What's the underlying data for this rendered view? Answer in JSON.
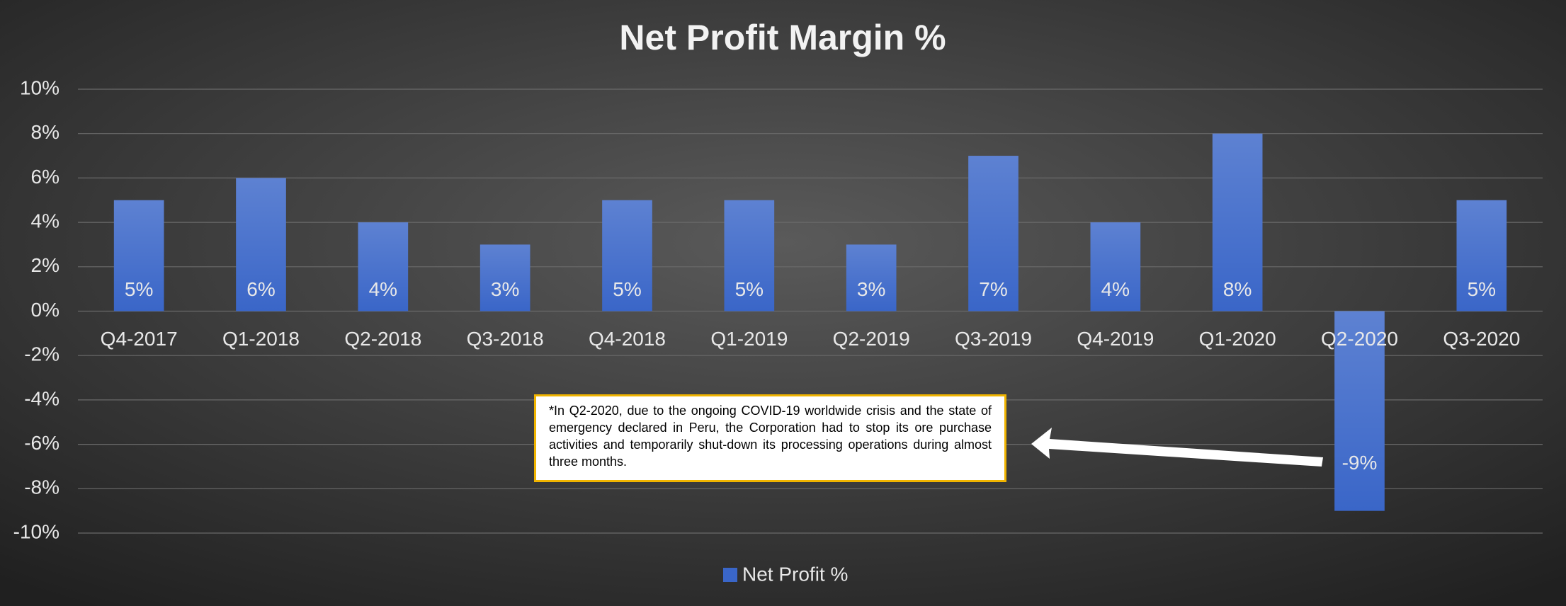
{
  "chart_data": {
    "type": "bar",
    "title": "Net Profit Margin %",
    "categories": [
      "Q4-2017",
      "Q1-2018",
      "Q2-2018",
      "Q3-2018",
      "Q4-2018",
      "Q1-2019",
      "Q2-2019",
      "Q3-2019",
      "Q4-2019",
      "Q1-2020",
      "Q2-2020",
      "Q3-2020"
    ],
    "series": [
      {
        "name": "Net Profit %",
        "color": "#3a66c8",
        "values": [
          5,
          6,
          4,
          3,
          5,
          5,
          3,
          7,
          4,
          8,
          -9,
          5
        ],
        "value_labels": [
          "5%",
          "6%",
          "4%",
          "3%",
          "5%",
          "5%",
          "3%",
          "7%",
          "4%",
          "8%",
          "-9%",
          "5%"
        ]
      }
    ],
    "ylim": [
      -10,
      10
    ],
    "yticks": [
      {
        "value": -10,
        "label": "-10%"
      },
      {
        "value": -8,
        "label": "-8%"
      },
      {
        "value": -6,
        "label": "-6%"
      },
      {
        "value": -4,
        "label": "-4%"
      },
      {
        "value": -2,
        "label": "-2%"
      },
      {
        "value": 0,
        "label": "0%"
      },
      {
        "value": 2,
        "label": "2%"
      },
      {
        "value": 4,
        "label": "4%"
      },
      {
        "value": 6,
        "label": "6%"
      },
      {
        "value": 8,
        "label": "8%"
      },
      {
        "value": 10,
        "label": "10%"
      }
    ],
    "grid": true,
    "legend": "bottom",
    "annotation": "*In Q2-2020, due to the ongoing COVID-19 worldwide crisis and the state of emergency declared in Peru, the Corporation had to stop its ore purchase activities and temporarily shut-down its processing operations during almost three months."
  }
}
